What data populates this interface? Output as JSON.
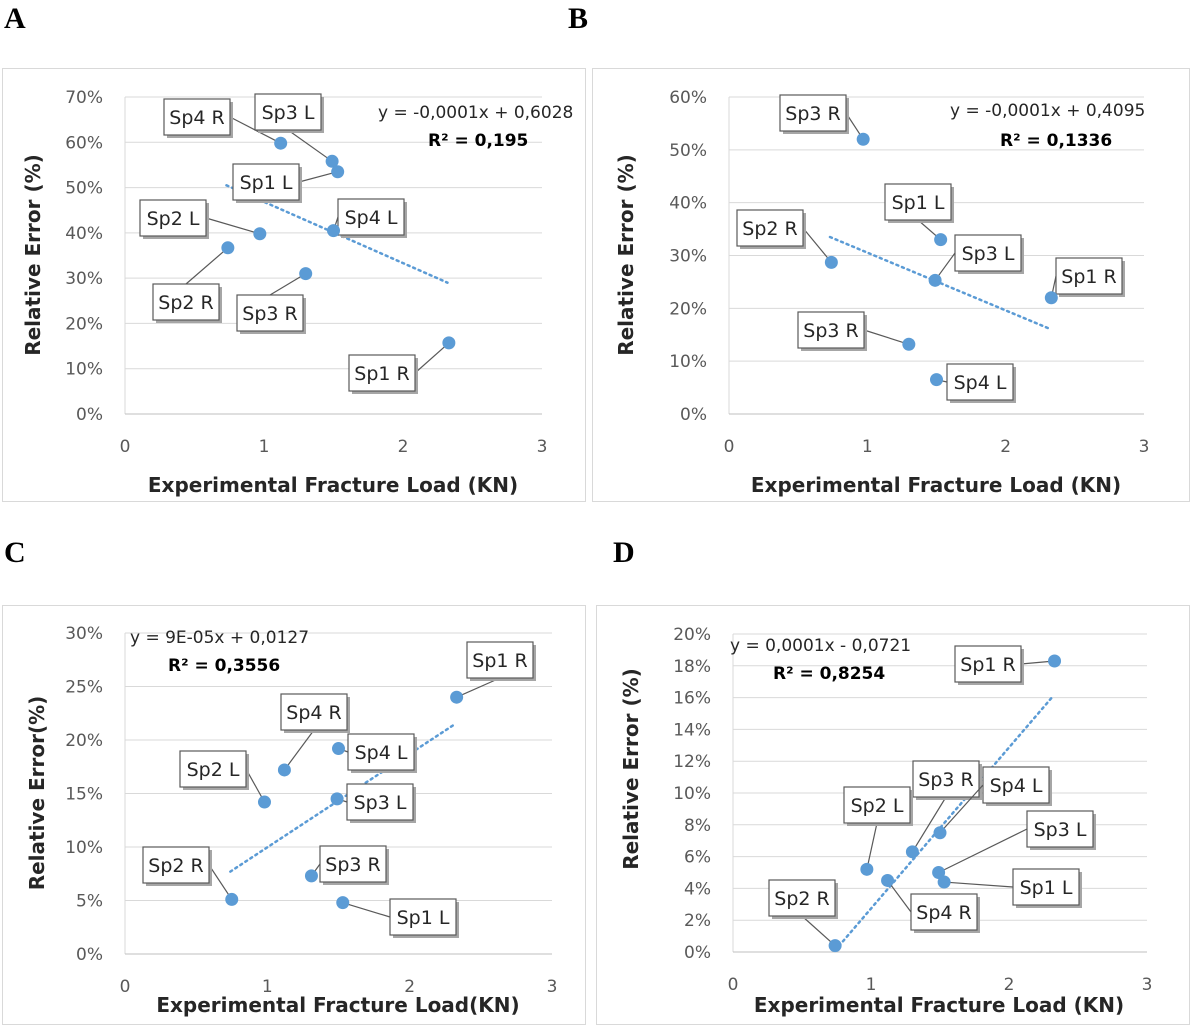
{
  "panels": [
    {
      "letter": "A"
    },
    {
      "letter": "B"
    },
    {
      "letter": "C"
    },
    {
      "letter": "D"
    }
  ],
  "chart_data": [
    {
      "type": "scatter",
      "xlabel": "Experimental Fracture Load (KN)",
      "ylabel": "Relative Error (%)",
      "xlim": [
        0,
        3
      ],
      "ylim": [
        0,
        70
      ],
      "x_ticks": [
        "0",
        "1",
        "2",
        "3"
      ],
      "y_ticks": [
        "0%",
        "10%",
        "20%",
        "30%",
        "40%",
        "50%",
        "60%",
        "70%"
      ],
      "grid": "horizontal",
      "marker_color": "#5b9bd5",
      "trendline": {
        "equation": "y = -0,0001x + 0,6028",
        "r2": "R² = 0,195",
        "x": [
          0.73,
          2.32
        ],
        "y": [
          50.5,
          29.0
        ]
      },
      "points": [
        {
          "label": "Sp4 R",
          "x": 1.12,
          "y": 59.8
        },
        {
          "label": "Sp3 L",
          "x": 1.49,
          "y": 55.8
        },
        {
          "label": "Sp1 L",
          "x": 1.53,
          "y": 53.5
        },
        {
          "label": "Sp2 L",
          "x": 0.97,
          "y": 39.8
        },
        {
          "label": "Sp4 L",
          "x": 1.5,
          "y": 40.5
        },
        {
          "label": "Sp2 R",
          "x": 0.74,
          "y": 36.7
        },
        {
          "label": "Sp3 R",
          "x": 1.3,
          "y": 31.0
        },
        {
          "label": "Sp1 R",
          "x": 2.33,
          "y": 15.7
        }
      ]
    },
    {
      "type": "scatter",
      "xlabel": "Experimental Fracture Load (KN)",
      "ylabel": "Relative Error (%)",
      "xlim": [
        0,
        3
      ],
      "ylim": [
        0,
        60
      ],
      "x_ticks": [
        "0",
        "1",
        "2",
        "3"
      ],
      "y_ticks": [
        "0%",
        "10%",
        "20%",
        "30%",
        "40%",
        "50%",
        "60%"
      ],
      "grid": "horizontal",
      "marker_color": "#5b9bd5",
      "trendline": {
        "equation": "y = -0,0001x + 0,4095",
        "r2": "R² = 0,1336",
        "x": [
          0.73,
          2.33
        ],
        "y": [
          33.5,
          16.0
        ]
      },
      "points": [
        {
          "label": "Sp3 R",
          "x": 0.97,
          "y": 52.0
        },
        {
          "label": "Sp1 L",
          "x": 1.53,
          "y": 33.0
        },
        {
          "label": "Sp2 R",
          "x": 0.74,
          "y": 28.7
        },
        {
          "label": "Sp3 L",
          "x": 1.49,
          "y": 25.3
        },
        {
          "label": "Sp1 R",
          "x": 2.33,
          "y": 22.0
        },
        {
          "label": "Sp3 R",
          "x": 1.3,
          "y": 13.2
        },
        {
          "label": "Sp4 L",
          "x": 1.5,
          "y": 6.5
        }
      ]
    },
    {
      "type": "scatter",
      "xlabel": "Experimental Fracture Load(KN)",
      "ylabel": "Relative Error(%)",
      "xlim": [
        0,
        3
      ],
      "ylim": [
        0,
        30
      ],
      "x_ticks": [
        "0",
        "1",
        "2",
        "3"
      ],
      "y_ticks": [
        "0%",
        "5%",
        "10%",
        "15%",
        "20%",
        "25%",
        "30%"
      ],
      "grid": "horizontal",
      "marker_color": "#5b9bd5",
      "trendline": {
        "equation": "y = 9E-05x + 0,0127",
        "r2": "R² = 0,3556",
        "x": [
          0.74,
          2.32
        ],
        "y": [
          7.7,
          21.5
        ]
      },
      "points": [
        {
          "label": "Sp1 R",
          "x": 2.33,
          "y": 24.0
        },
        {
          "label": "Sp4 R",
          "x": 1.12,
          "y": 17.2
        },
        {
          "label": "Sp4 L",
          "x": 1.5,
          "y": 19.2
        },
        {
          "label": "Sp2 L",
          "x": 0.98,
          "y": 14.2
        },
        {
          "label": "Sp3 L",
          "x": 1.49,
          "y": 14.5
        },
        {
          "label": "Sp2 R",
          "x": 0.75,
          "y": 5.1
        },
        {
          "label": "Sp3 R",
          "x": 1.31,
          "y": 7.3
        },
        {
          "label": "Sp1 L",
          "x": 1.53,
          "y": 4.8
        }
      ]
    },
    {
      "type": "scatter",
      "xlabel": "Experimental Fracture Load (KN)",
      "ylabel": "Relative Error (%)",
      "xlim": [
        0,
        3
      ],
      "ylim": [
        0,
        20
      ],
      "x_ticks": [
        "0",
        "1",
        "2",
        "3"
      ],
      "y_ticks": [
        "0%",
        "2%",
        "4%",
        "6%",
        "8%",
        "10%",
        "12%",
        "14%",
        "16%",
        "18%",
        "20%"
      ],
      "grid": "horizontal",
      "marker_color": "#5b9bd5",
      "trendline": {
        "equation": "y = 0,0001x - 0,0721",
        "r2": "R² = 0,8254",
        "x": [
          0.74,
          2.32
        ],
        "y": [
          0.1,
          16.1
        ]
      },
      "points": [
        {
          "label": "Sp1 R",
          "x": 2.33,
          "y": 18.3
        },
        {
          "label": "Sp3 R",
          "x": 1.3,
          "y": 6.3
        },
        {
          "label": "Sp4 L",
          "x": 1.5,
          "y": 7.5
        },
        {
          "label": "Sp2 L",
          "x": 0.97,
          "y": 5.2
        },
        {
          "label": "Sp3 L",
          "x": 1.49,
          "y": 5.0
        },
        {
          "label": "Sp1 L",
          "x": 1.53,
          "y": 4.4
        },
        {
          "label": "Sp4 R",
          "x": 1.12,
          "y": 4.5
        },
        {
          "label": "Sp2 R",
          "x": 0.74,
          "y": 0.4
        }
      ]
    }
  ]
}
